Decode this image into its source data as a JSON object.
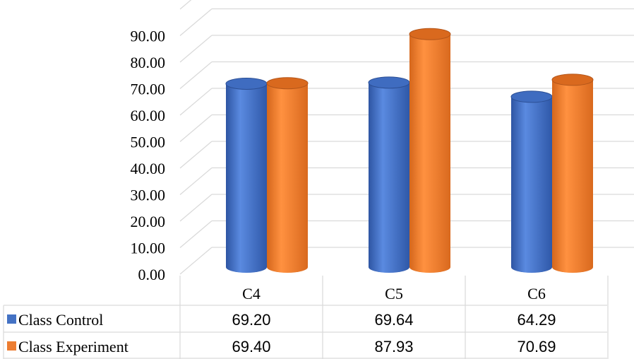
{
  "chart_data": {
    "type": "bar",
    "categories": [
      "C4",
      "C5",
      "C6"
    ],
    "series": [
      {
        "name": "Class Control",
        "values": [
          69.2,
          69.64,
          64.29
        ],
        "display": [
          "69.20",
          "69.64",
          "64.29"
        ],
        "color": "#4472C4"
      },
      {
        "name": "Class Experiment",
        "values": [
          69.4,
          87.93,
          70.69
        ],
        "display": [
          "69.40",
          "87.93",
          "70.69"
        ],
        "color": "#ED7D31"
      }
    ],
    "y_ticks": [
      "0.00",
      "10.00",
      "20.00",
      "30.00",
      "40.00",
      "50.00",
      "60.00",
      "70.00",
      "80.00",
      "90.00"
    ],
    "ylim": [
      0,
      100
    ],
    "grid": true,
    "legend": "data-table"
  }
}
